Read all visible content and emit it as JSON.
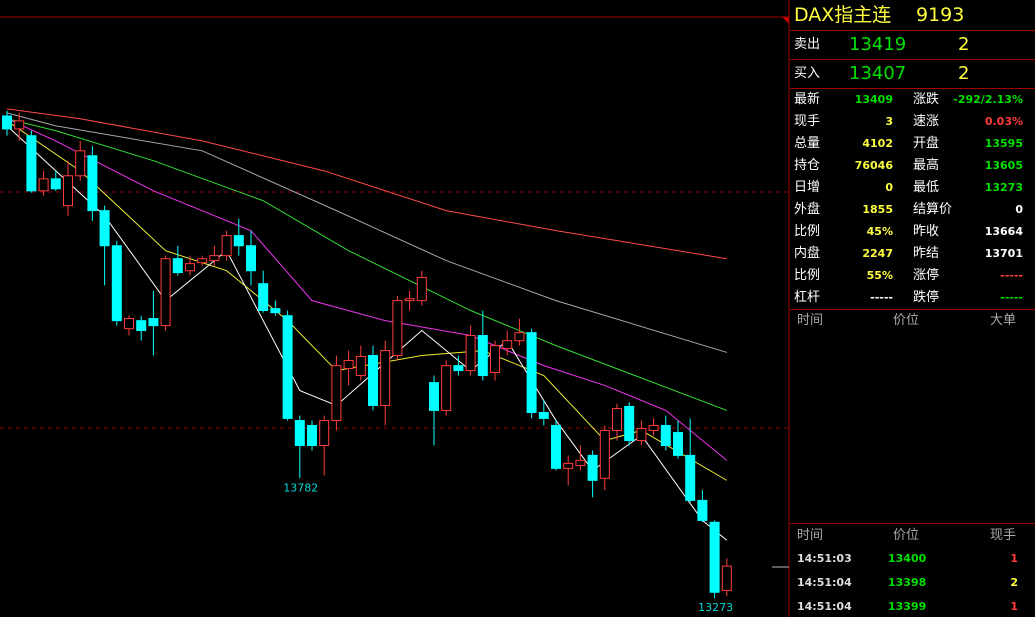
{
  "chart_data": {
    "type": "candlestick",
    "open": [
      15320,
      15265,
      15236,
      15002,
      15053,
      14939,
      15066,
      15151,
      14918,
      14769,
      14417,
      14451,
      14460,
      14430,
      14714,
      14663,
      14697,
      14706,
      14727,
      14812,
      14769,
      14608,
      14502,
      14472,
      14027,
      14006,
      13921,
      14027,
      14248,
      14218,
      14303,
      14091,
      14303,
      14536,
      14536,
      14188,
      14070,
      14260,
      14239,
      14388,
      14231,
      14333,
      14366,
      14400,
      14061,
      14006,
      13824,
      13836,
      13879,
      13782,
      13985,
      14087,
      13942,
      13985,
      14006,
      13976,
      13879,
      13688,
      13595,
      13306
    ],
    "high": [
      15342,
      15333,
      15257,
      15087,
      15087,
      15130,
      15214,
      15193,
      14939,
      14790,
      14472,
      14472,
      14578,
      14727,
      14769,
      14727,
      14727,
      14769,
      14833,
      14884,
      14833,
      14663,
      14536,
      14494,
      14048,
      14027,
      14048,
      14303,
      14324,
      14345,
      14345,
      14366,
      14557,
      14578,
      14663,
      14218,
      14282,
      14303,
      14430,
      14494,
      14366,
      14409,
      14460,
      14417,
      14112,
      14027,
      13879,
      13921,
      13900,
      14006,
      14099,
      14104,
      14027,
      14036,
      14048,
      14027,
      14036,
      13732,
      13603,
      13442
    ],
    "low": [
      15236,
      15214,
      14994,
      14981,
      15002,
      14896,
      15045,
      14875,
      14600,
      14430,
      14388,
      14366,
      14303,
      14409,
      14642,
      14642,
      14684,
      14684,
      14706,
      14727,
      14600,
      14485,
      14472,
      14027,
      13782,
      13900,
      13794,
      13985,
      14176,
      14197,
      14070,
      14006,
      14282,
      14494,
      14515,
      13921,
      14048,
      14218,
      14218,
      14197,
      14197,
      14303,
      14345,
      14036,
      14006,
      13815,
      13752,
      13815,
      13701,
      13732,
      13942,
      13921,
      13921,
      13964,
      13900,
      13866,
      13680,
      13595,
      13273,
      13281
    ],
    "close": [
      15265,
      15299,
      15002,
      15053,
      15011,
      15066,
      15172,
      14918,
      14769,
      14451,
      14460,
      14409,
      14430,
      14714,
      14655,
      14693,
      14714,
      14727,
      14812,
      14769,
      14663,
      14494,
      14485,
      14036,
      13921,
      13921,
      14027,
      14260,
      14282,
      14299,
      14091,
      14324,
      14536,
      14544,
      14634,
      14070,
      14260,
      14239,
      14388,
      14218,
      14345,
      14366,
      14400,
      14061,
      14036,
      13824,
      13845,
      13858,
      13773,
      13985,
      14078,
      13942,
      13993,
      14006,
      13921,
      13879,
      13688,
      13603,
      13298,
      13409
    ],
    "up_color": "#ff3c3c",
    "down_color": "#00ffff",
    "labeled_lows": [
      24,
      58
    ],
    "ylim": [
      13210,
      15740
    ],
    "lines": [
      {
        "color": "#ff4a4a",
        "x": [
          0,
          6,
          16,
          26,
          36,
          45,
          59
        ],
        "values": [
          15350,
          15308,
          15214,
          15087,
          14918,
          14833,
          14714
        ]
      },
      {
        "color": "#a8a8a8",
        "x": [
          0,
          4,
          16,
          27,
          36,
          45,
          59
        ],
        "values": [
          15333,
          15278,
          15172,
          14918,
          14706,
          14536,
          14316
        ]
      },
      {
        "color": "#33dd33",
        "x": [
          0,
          4,
          12,
          21,
          28,
          38,
          45,
          59
        ],
        "values": [
          15308,
          15257,
          15130,
          14960,
          14748,
          14494,
          14345,
          14070
        ]
      },
      {
        "color": "#ee33ee",
        "x": [
          0,
          4,
          12,
          20,
          25,
          31,
          38,
          44,
          49,
          54,
          59
        ],
        "values": [
          15308,
          15214,
          15002,
          14833,
          14536,
          14451,
          14388,
          14260,
          14176,
          14070,
          13858
        ]
      },
      {
        "color": "#eeee33",
        "x": [
          0,
          6,
          13,
          18,
          23,
          27,
          34,
          39,
          44,
          49,
          52,
          59
        ],
        "values": [
          15299,
          15087,
          14748,
          14663,
          14451,
          14239,
          14303,
          14324,
          14218,
          13942,
          13985,
          13773
        ]
      },
      {
        "color": "#ffffff",
        "x": [
          0,
          8,
          13,
          18,
          24,
          27,
          34,
          38,
          41,
          45,
          48,
          52,
          57,
          59
        ],
        "values": [
          15278,
          14896,
          14536,
          14748,
          14154,
          14091,
          14409,
          14239,
          14366,
          14027,
          13815,
          13964,
          13603,
          13519
        ]
      }
    ]
  },
  "quote_panel": {
    "name": "DAX指主连",
    "code": "9193",
    "ask": {
      "label": "卖出",
      "price": "13419",
      "volume": "2"
    },
    "bid": {
      "label": "买入",
      "price": "13407",
      "volume": "2"
    },
    "stats": [
      [
        {
          "label": "最新",
          "value": "13409",
          "color": "#00e000"
        },
        {
          "label": "涨跌",
          "value": "-292/2.13%",
          "color": "#00e000"
        }
      ],
      [
        {
          "label": "现手",
          "value": "3",
          "color": "#ffff40"
        },
        {
          "label": "速涨",
          "value": "0.03%",
          "color": "#ff3c3c"
        }
      ],
      [
        {
          "label": "总量",
          "value": "4102",
          "color": "#ffff40"
        },
        {
          "label": "开盘",
          "value": "13595",
          "color": "#00e000"
        }
      ],
      [
        {
          "label": "持仓",
          "value": "76046",
          "color": "#ffff40"
        },
        {
          "label": "最高",
          "value": "13605",
          "color": "#00e000"
        }
      ],
      [
        {
          "label": "日增",
          "value": "0",
          "color": "#ffff40"
        },
        {
          "label": "最低",
          "value": "13273",
          "color": "#00e000"
        }
      ],
      [
        {
          "label": "外盘",
          "value": "1855",
          "color": "#ffff40"
        },
        {
          "label": "结算价",
          "value": "0",
          "color": "#ffffff"
        }
      ],
      [
        {
          "label": "比例",
          "value": "45%",
          "color": "#ffff40"
        },
        {
          "label": "昨收",
          "value": "13664",
          "color": "#ffffff"
        }
      ],
      [
        {
          "label": "内盘",
          "value": "2247",
          "color": "#ffff40"
        },
        {
          "label": "昨结",
          "value": "13701",
          "color": "#ffffff"
        }
      ],
      [
        {
          "label": "比例",
          "value": "55%",
          "color": "#ffff40"
        },
        {
          "label": "涨停",
          "value": "-----",
          "color": "#ff3c3c"
        }
      ],
      [
        {
          "label": "杠杆",
          "value": "-----",
          "color": "#ffffff"
        },
        {
          "label": "跌停",
          "value": "-----",
          "color": "#00e000"
        }
      ]
    ],
    "big_orders_header": [
      "时间",
      "价位",
      "大单"
    ],
    "trades_header": [
      "时间",
      "价位",
      "现手"
    ],
    "trades": [
      {
        "time": "14:51:03",
        "price": "13400",
        "volume": "1",
        "color": "#ff3c3c"
      },
      {
        "time": "14:51:04",
        "price": "13398",
        "volume": "2",
        "color": "#ffff40"
      },
      {
        "time": "14:51:04",
        "price": "13399",
        "volume": "1",
        "color": "#ff3c3c"
      }
    ]
  }
}
